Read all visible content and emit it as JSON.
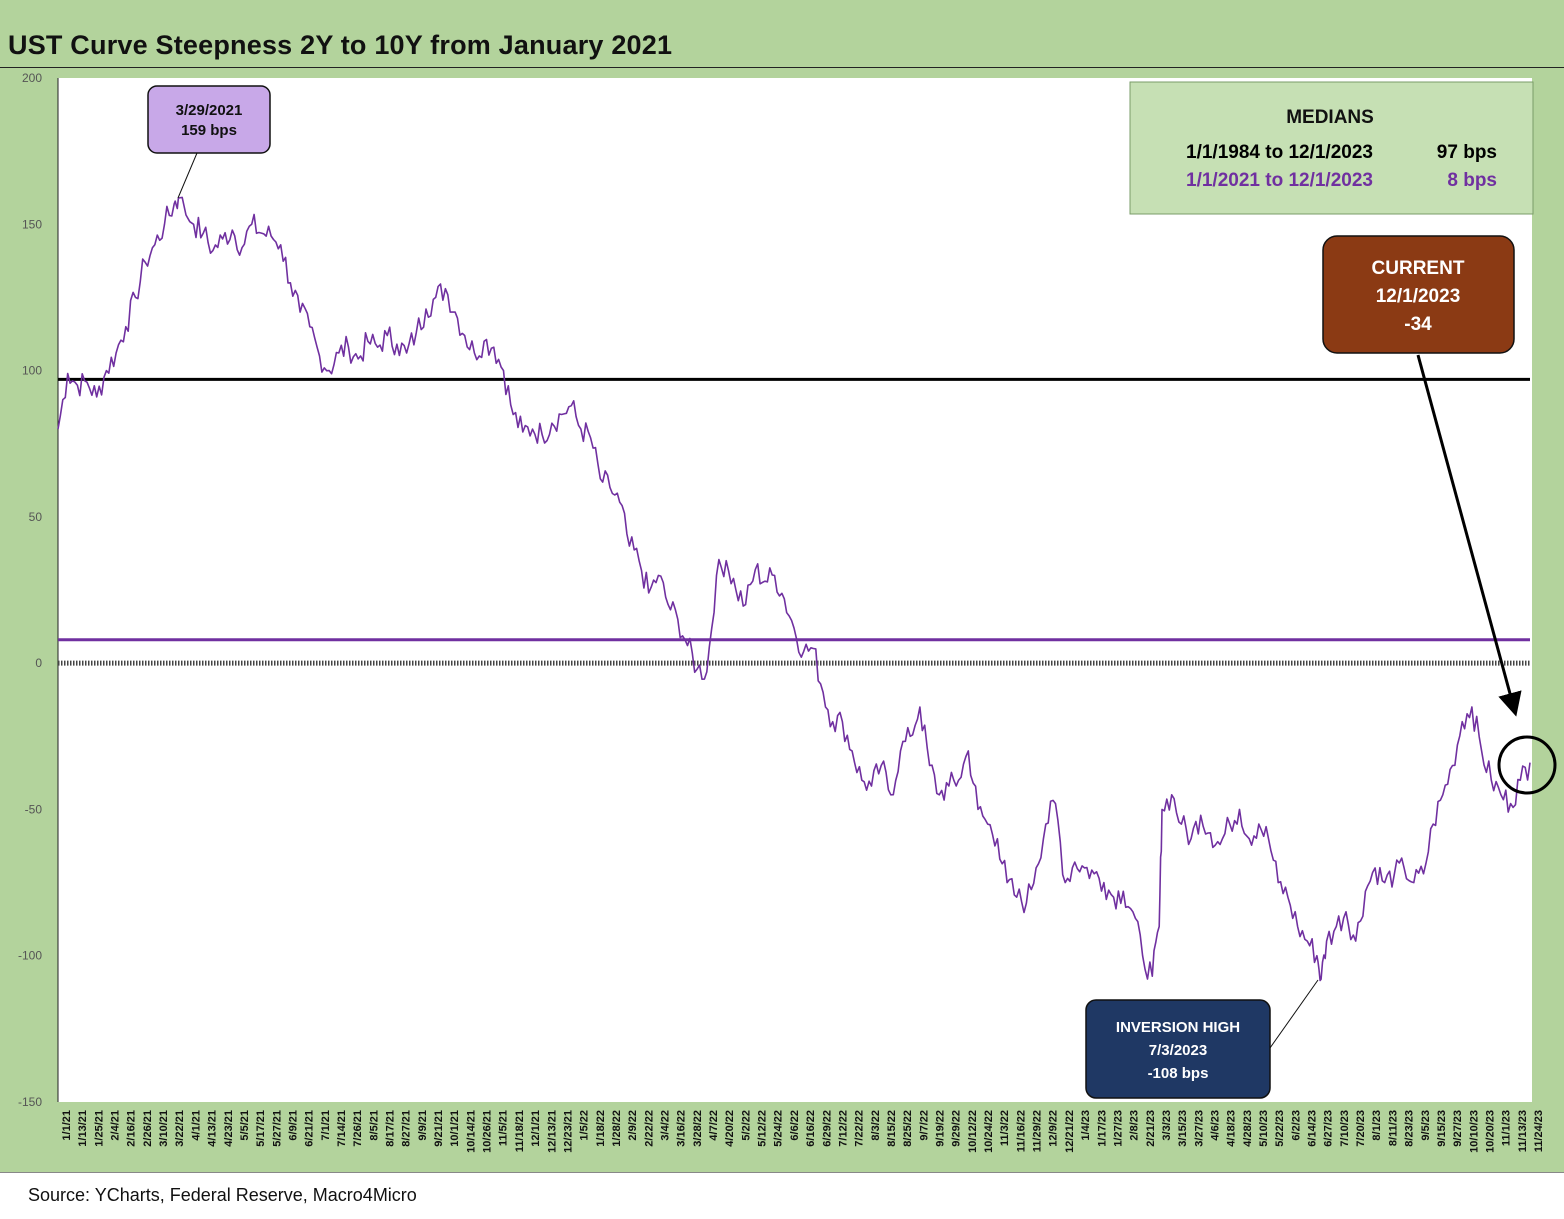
{
  "title": "UST Curve Steepness 2Y to 10Y from January 2021",
  "source": "Source: YCharts, Federal Reserve, Macro4Micro",
  "colors": {
    "background": "#b3d39c",
    "series": "#7030a0",
    "median_long": "#000000",
    "median_short": "#7030a0",
    "peak_box": "#c8a8e8",
    "current_box": "#8b3a14",
    "inversion_box": "#1f3864",
    "medians_box": "#c6e0b4"
  },
  "medians_box": {
    "heading": "MEDIANS",
    "rows": [
      {
        "period": "1/1/1984 to 12/1/2023",
        "value": "97 bps",
        "color": "#000000"
      },
      {
        "period": "1/1/2021 to 12/1/2023",
        "value": "8 bps",
        "color": "#7030a0"
      }
    ]
  },
  "callouts": {
    "peak": {
      "line1": "3/29/2021",
      "line2": "159 bps"
    },
    "current": {
      "line1": "CURRENT",
      "line2": "12/1/2023",
      "line3": "-34"
    },
    "inversion": {
      "line1": "INVERSION HIGH",
      "line2": "7/3/2023",
      "line3": "-108 bps"
    }
  },
  "chart_data": {
    "type": "line",
    "title": "UST Curve Steepness 2Y to 10Y from January 2021",
    "xlabel": "",
    "ylabel": "",
    "ylim": [
      -150,
      200
    ],
    "yticks": [
      200,
      150,
      100,
      50,
      0,
      -50,
      -100,
      -150
    ],
    "grid": false,
    "reference_lines": [
      {
        "label": "1/1/1984 to 12/1/2023",
        "value": 97,
        "color": "#000000"
      },
      {
        "label": "1/1/2021 to 12/1/2023",
        "value": 8,
        "color": "#7030a0"
      },
      {
        "label": "",
        "value": 0,
        "color": "#333333",
        "style": "dashed"
      }
    ],
    "x_tick_labels": [
      "1/1/21",
      "1/13/21",
      "1/25/21",
      "2/4/21",
      "2/16/21",
      "2/26/21",
      "3/10/21",
      "3/22/21",
      "4/1/21",
      "4/13/21",
      "4/23/21",
      "5/5/21",
      "5/17/21",
      "5/27/21",
      "6/9/21",
      "6/21/21",
      "7/1/21",
      "7/14/21",
      "7/26/21",
      "8/5/21",
      "8/17/21",
      "8/27/21",
      "9/9/21",
      "9/21/21",
      "10/1/21",
      "10/14/21",
      "10/26/21",
      "11/5/21",
      "11/18/21",
      "12/1/21",
      "12/13/21",
      "12/23/21",
      "1/5/22",
      "1/18/22",
      "1/28/22",
      "2/9/22",
      "2/22/22",
      "3/4/22",
      "3/16/22",
      "3/28/22",
      "4/7/22",
      "4/20/22",
      "5/2/22",
      "5/12/22",
      "5/24/22",
      "6/6/22",
      "6/16/22",
      "6/29/22",
      "7/12/22",
      "7/22/22",
      "8/3/22",
      "8/15/22",
      "8/25/22",
      "9/7/22",
      "9/19/22",
      "9/29/22",
      "10/12/22",
      "10/24/22",
      "11/3/22",
      "11/16/22",
      "11/29/22",
      "12/9/22",
      "12/21/22",
      "1/4/23",
      "1/17/23",
      "1/27/23",
      "2/8/23",
      "2/21/23",
      "3/3/23",
      "3/15/23",
      "3/27/23",
      "4/6/23",
      "4/18/23",
      "4/28/23",
      "5/10/23",
      "5/22/23",
      "6/2/23",
      "6/14/23",
      "6/27/23",
      "7/10/23",
      "7/20/23",
      "8/1/23",
      "8/11/23",
      "8/23/23",
      "9/5/23",
      "9/15/23",
      "9/27/23",
      "10/10/23",
      "10/20/23",
      "11/1/23",
      "11/13/23",
      "11/24/23"
    ],
    "series": [
      {
        "name": "",
        "color": "#7030a0",
        "x": [
          "2021-01-01",
          "2021-01-08",
          "2021-01-15",
          "2021-01-22",
          "2021-01-29",
          "2021-02-05",
          "2021-02-12",
          "2021-02-19",
          "2021-02-26",
          "2021-03-05",
          "2021-03-12",
          "2021-03-19",
          "2021-03-26",
          "2021-03-29",
          "2021-04-09",
          "2021-04-16",
          "2021-04-23",
          "2021-04-30",
          "2021-05-07",
          "2021-05-14",
          "2021-05-21",
          "2021-05-28",
          "2021-06-04",
          "2021-06-11",
          "2021-06-18",
          "2021-06-25",
          "2021-07-02",
          "2021-07-09",
          "2021-07-16",
          "2021-07-23",
          "2021-07-30",
          "2021-08-06",
          "2021-08-13",
          "2021-08-20",
          "2021-08-27",
          "2021-09-03",
          "2021-09-10",
          "2021-09-17",
          "2021-09-24",
          "2021-10-01",
          "2021-10-08",
          "2021-10-15",
          "2021-10-22",
          "2021-10-29",
          "2021-11-05",
          "2021-11-12",
          "2021-11-19",
          "2021-11-26",
          "2021-12-03",
          "2021-12-10",
          "2021-12-17",
          "2021-12-24",
          "2021-12-31",
          "2022-01-07",
          "2022-01-14",
          "2022-01-21",
          "2022-01-28",
          "2022-02-04",
          "2022-02-11",
          "2022-02-18",
          "2022-02-25",
          "2022-03-04",
          "2022-03-11",
          "2022-03-18",
          "2022-03-25",
          "2022-04-01",
          "2022-04-08",
          "2022-04-15",
          "2022-04-22",
          "2022-04-29",
          "2022-05-06",
          "2022-05-13",
          "2022-05-20",
          "2022-05-27",
          "2022-06-03",
          "2022-06-10",
          "2022-06-17",
          "2022-06-24",
          "2022-07-01",
          "2022-07-08",
          "2022-07-15",
          "2022-07-22",
          "2022-07-29",
          "2022-08-05",
          "2022-08-12",
          "2022-08-19",
          "2022-08-26",
          "2022-09-02",
          "2022-09-09",
          "2022-09-16",
          "2022-09-23",
          "2022-09-30",
          "2022-10-07",
          "2022-10-14",
          "2022-10-21",
          "2022-10-28",
          "2022-11-04",
          "2022-11-11",
          "2022-11-18",
          "2022-11-25",
          "2022-12-02",
          "2022-12-09",
          "2022-12-16",
          "2022-12-23",
          "2022-12-30",
          "2023-01-06",
          "2023-01-13",
          "2023-01-20",
          "2023-01-27",
          "2023-02-03",
          "2023-02-10",
          "2023-02-17",
          "2023-02-24",
          "2023-03-03",
          "2023-03-08",
          "2023-03-10",
          "2023-03-17",
          "2023-03-24",
          "2023-03-31",
          "2023-04-07",
          "2023-04-14",
          "2023-04-21",
          "2023-04-28",
          "2023-05-05",
          "2023-05-12",
          "2023-05-19",
          "2023-05-26",
          "2023-06-02",
          "2023-06-09",
          "2023-06-16",
          "2023-06-23",
          "2023-06-30",
          "2023-07-03",
          "2023-07-07",
          "2023-07-14",
          "2023-07-21",
          "2023-07-28",
          "2023-08-04",
          "2023-08-11",
          "2023-08-18",
          "2023-08-25",
          "2023-09-01",
          "2023-09-08",
          "2023-09-15",
          "2023-09-22",
          "2023-09-29",
          "2023-10-06",
          "2023-10-13",
          "2023-10-20",
          "2023-10-27",
          "2023-11-03",
          "2023-11-10",
          "2023-11-17",
          "2023-11-24",
          "2023-12-01"
        ],
        "values": [
          80,
          99,
          95,
          96,
          91,
          100,
          106,
          115,
          125,
          137,
          143,
          150,
          157,
          159,
          150,
          147,
          141,
          145,
          148,
          142,
          150,
          147,
          146,
          143,
          130,
          120,
          115,
          105,
          100,
          106,
          108,
          104,
          110,
          108,
          112,
          109,
          106,
          113,
          121,
          125,
          128,
          120,
          112,
          106,
          110,
          108,
          100,
          85,
          79,
          80,
          78,
          82,
          85,
          88,
          80,
          77,
          63,
          60,
          55,
          40,
          35,
          24,
          30,
          20,
          15,
          6,
          -2,
          -3,
          30,
          35,
          25,
          20,
          32,
          28,
          30,
          22,
          12,
          4,
          5,
          -10,
          -20,
          -20,
          -30,
          -40,
          -42,
          -35,
          -45,
          -30,
          -25,
          -15,
          -35,
          -45,
          -42,
          -40,
          -30,
          -50,
          -55,
          -60,
          -75,
          -80,
          -82,
          -70,
          -55,
          -48,
          -75,
          -68,
          -70,
          -72,
          -75,
          -80,
          -78,
          -85,
          -100,
          -107,
          -90,
          -50,
          -45,
          -55,
          -60,
          -52,
          -58,
          -62,
          -55,
          -50,
          -60,
          -55,
          -60,
          -75,
          -80,
          -90,
          -95,
          -100,
          -108,
          -95,
          -90,
          -85,
          -95,
          -78,
          -70,
          -75,
          -72,
          -70,
          -75,
          -72,
          -55,
          -45,
          -35,
          -20,
          -15,
          -30,
          -40,
          -45,
          -48,
          -40,
          -34
        ]
      }
    ]
  }
}
